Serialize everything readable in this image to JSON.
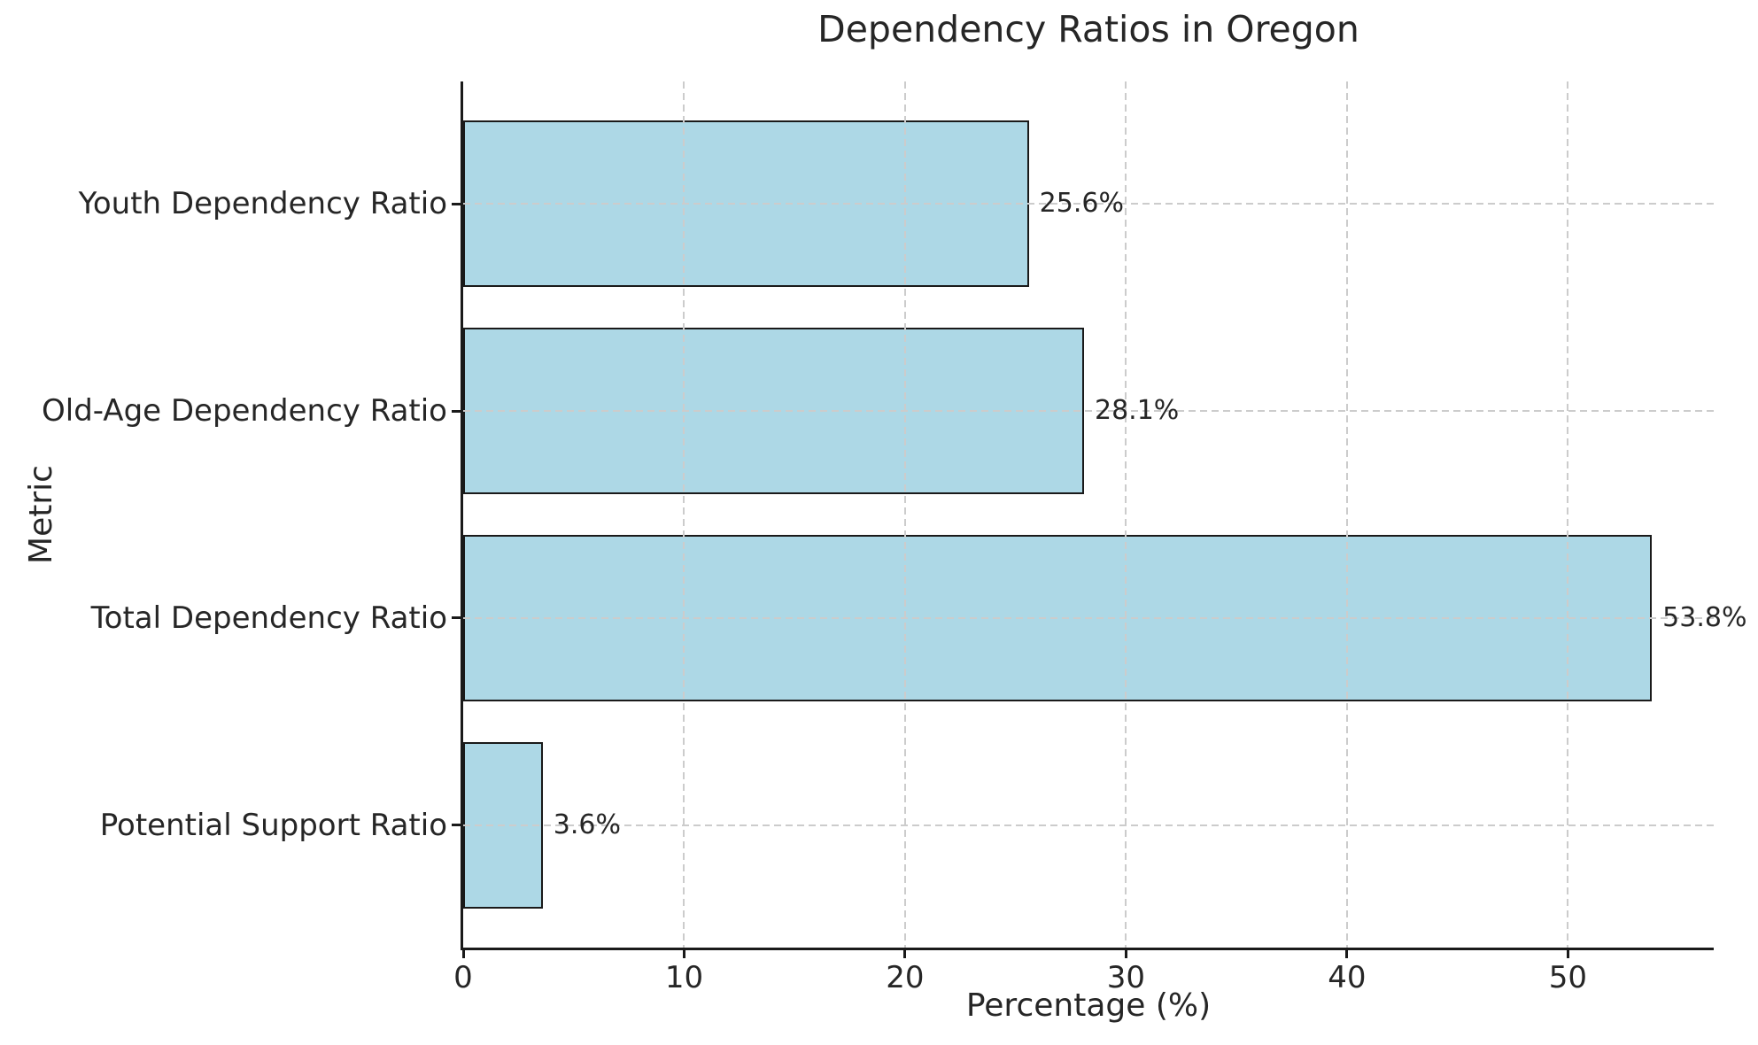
{
  "chart_data": {
    "type": "bar",
    "orientation": "horizontal",
    "title": "Dependency Ratios in Oregon",
    "xlabel": "Percentage (%)",
    "ylabel": "Metric",
    "categories": [
      "Youth Dependency Ratio",
      "Old-Age Dependency Ratio",
      "Total Dependency Ratio",
      "Potential Support Ratio"
    ],
    "values": [
      25.6,
      28.1,
      53.8,
      3.6
    ],
    "value_labels": [
      "25.6%",
      "28.1%",
      "53.8%",
      "3.6%"
    ],
    "x_ticks": [
      0,
      10,
      20,
      30,
      40,
      50
    ],
    "xlim": [
      0,
      56.6
    ],
    "grid": "dashed gridlines on both axes, drawn above bars",
    "legend": "none",
    "colors": {
      "bar_fill": "#add8e6",
      "bar_edge": "#1a1a1a",
      "grid": "#cccccc",
      "text": "#262626",
      "background": "#ffffff"
    }
  }
}
